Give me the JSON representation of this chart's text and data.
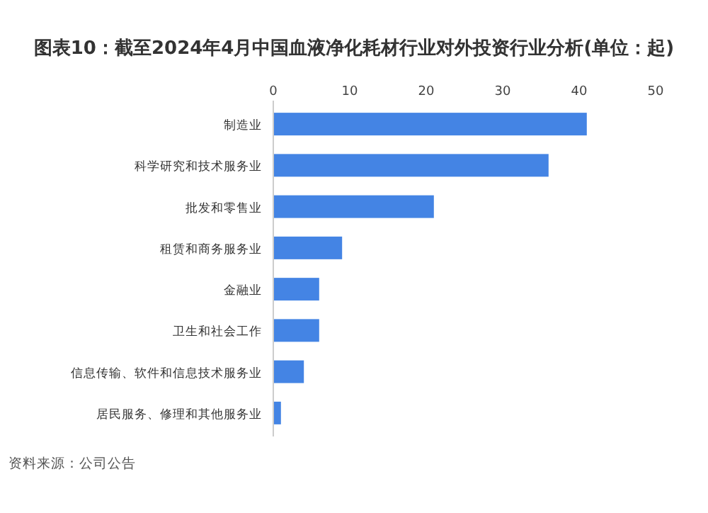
{
  "chart_data": {
    "type": "bar",
    "orientation": "horizontal",
    "title": "图表10：截至2024年4月中国血液净化耗材行业对外投资行业分析(单位：起)",
    "categories": [
      "制造业",
      "科学研究和技术服务业",
      "批发和零售业",
      "租赁和商务服务业",
      "金融业",
      "卫生和社会工作",
      "信息传输、软件和信息技术服务业",
      "居民服务、修理和其他服务业"
    ],
    "values": [
      41,
      36,
      21,
      9,
      6,
      6,
      4,
      1
    ],
    "color": "#4484e4",
    "xlim": [
      0,
      50
    ],
    "xticks": [
      0,
      10,
      20,
      30,
      40,
      50
    ],
    "grid": false,
    "annotations": [
      "资料来源：公司公告"
    ]
  }
}
